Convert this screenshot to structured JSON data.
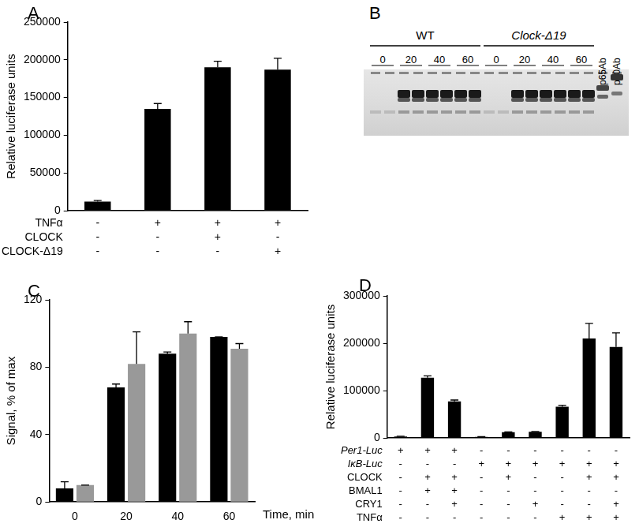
{
  "chart_data": [
    {
      "panel_label": "A",
      "type": "bar",
      "y_label": "Relative luciferase units",
      "categories": [
        null,
        null,
        null,
        null
      ],
      "values": [
        12000,
        135000,
        190000,
        187000
      ],
      "errors": [
        1500,
        7000,
        8000,
        15000
      ],
      "color": "#000000",
      "ylim": [
        0,
        250000
      ],
      "yticks": [
        0,
        50000,
        100000,
        150000,
        200000,
        250000
      ],
      "grid": false,
      "tick_labels": "y",
      "conditions": [
        {
          "name": "TNFα",
          "marks": [
            "-",
            "+",
            "+",
            "+"
          ]
        },
        {
          "name": "CLOCK",
          "marks": [
            "-",
            "-",
            "+",
            "-"
          ]
        },
        {
          "name": "CLOCK-Δ19",
          "marks": [
            "-",
            "-",
            "-",
            "+"
          ]
        }
      ]
    },
    {
      "panel_label": "C",
      "type": "bar",
      "y_label": "Signal, % of max",
      "x_label": "Time, min",
      "categories": [
        0,
        20,
        40,
        60
      ],
      "series": [
        {
          "color": "#000000",
          "values": [
            8,
            68,
            88,
            98
          ],
          "errors": [
            4,
            2,
            1,
            0
          ]
        },
        {
          "color": "#999999",
          "values": [
            10,
            82,
            100,
            91
          ],
          "errors": [
            0,
            19,
            7,
            3
          ]
        }
      ],
      "ylim": [
        0,
        120
      ],
      "yticks": [
        0,
        40,
        80,
        120
      ],
      "grid": false
    },
    {
      "panel_label": "D",
      "type": "bar",
      "y_label": "Relative luciferase units",
      "categories": [
        null,
        null,
        null,
        null,
        null,
        null,
        null,
        null,
        null
      ],
      "values": [
        3000,
        127000,
        77000,
        2000,
        12000,
        13000,
        66000,
        210000,
        192000
      ],
      "errors": [
        500,
        4000,
        3000,
        500,
        500,
        500,
        3000,
        32000,
        30000
      ],
      "color": "#000000",
      "ylim": [
        0,
        300000
      ],
      "yticks": [
        0,
        100000,
        200000,
        300000
      ],
      "grid": false,
      "tick_labels": "y",
      "conditions": [
        {
          "name": "Per1-Luc",
          "marks": [
            "+",
            "+",
            "+",
            "-",
            "-",
            "-",
            "-",
            "-",
            "-"
          ]
        },
        {
          "name": "IκB-Luc",
          "marks": [
            "-",
            "-",
            "-",
            "+",
            "+",
            "+",
            "+",
            "+",
            "+"
          ]
        },
        {
          "name": "CLOCK",
          "marks": [
            "-",
            "+",
            "+",
            "-",
            "+",
            "-",
            "-",
            "+",
            "+"
          ]
        },
        {
          "name": "BMAL1",
          "marks": [
            "-",
            "+",
            "+",
            "-",
            "-",
            "-",
            "-",
            "-",
            "-"
          ]
        },
        {
          "name": "CRY1",
          "marks": [
            "-",
            "-",
            "+",
            "-",
            "-",
            "+",
            "-",
            "-",
            "+"
          ]
        },
        {
          "name": "TNFα",
          "marks": [
            "-",
            "-",
            "-",
            "-",
            "-",
            "-",
            "+",
            "+",
            "+"
          ]
        }
      ]
    }
  ],
  "gel": {
    "panel_label": "B",
    "groups": [
      {
        "label": "WT",
        "lanes": [
          "0",
          "20",
          "40",
          "60"
        ]
      },
      {
        "label": "Clock-Δ19",
        "lanes": [
          "0",
          "20",
          "40",
          "60"
        ]
      }
    ],
    "antibody_lanes": [
      "p65Ab",
      "p50Ab"
    ]
  }
}
